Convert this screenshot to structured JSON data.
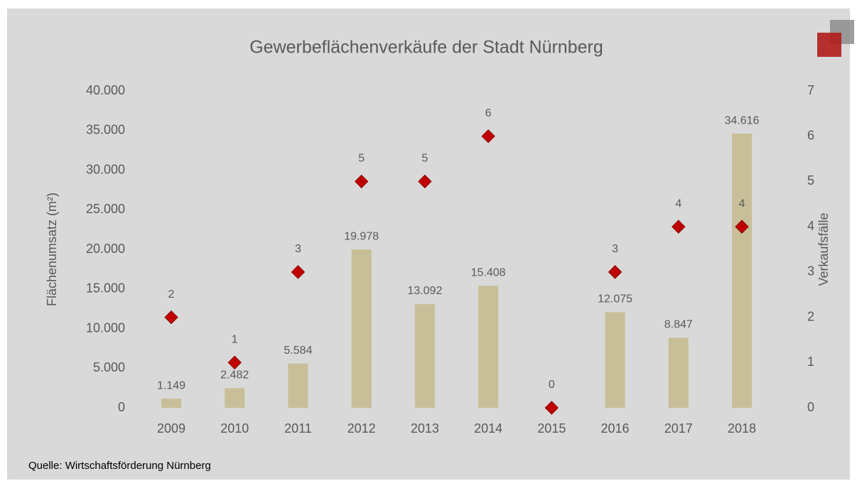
{
  "chart_data": {
    "type": "bar",
    "title": "Gewerbeflächenverkäufe der Stadt Nürnberg",
    "source": "Quelle: Wirtschaftsförderung Nürnberg",
    "ylabel": "Flächenumsatz (m²)",
    "y2label": "Verkaufsfälle",
    "categories": [
      "2009",
      "2010",
      "2011",
      "2012",
      "2013",
      "2014",
      "2015",
      "2016",
      "2017",
      "2018"
    ],
    "series": [
      {
        "type": "bar",
        "color": "#c8bf99",
        "values": [
          1149,
          2482,
          5584,
          19978,
          13092,
          15408,
          0,
          12075,
          8847,
          34616
        ],
        "value_labels": [
          "1.149",
          "2.482",
          "5.584",
          "19.978",
          "13.092",
          "15.408",
          null,
          "12.075",
          "8.847",
          "34.616"
        ]
      },
      {
        "type": "scatter",
        "axis": "y2",
        "color": "#c00000",
        "values": [
          2,
          1,
          3,
          5,
          5,
          6,
          0,
          3,
          4,
          4
        ]
      }
    ],
    "ylim": [
      0,
      40000
    ],
    "yticks": [
      0,
      {
        "value": 5000,
        "label": "5.000"
      },
      {
        "value": 10000,
        "label": "10.000"
      },
      {
        "value": 15000,
        "label": "15.000"
      },
      {
        "value": 20000,
        "label": "20.000"
      },
      {
        "value": 25000,
        "label": "25.000"
      },
      {
        "value": 30000,
        "label": "30.000"
      },
      {
        "value": 35000,
        "label": "35.000"
      },
      {
        "value": 40000,
        "label": "40.000"
      }
    ],
    "y2lim": [
      0,
      7
    ],
    "y2ticks": [
      0,
      1,
      2,
      3,
      4,
      5,
      6,
      7
    ],
    "grid": false
  }
}
